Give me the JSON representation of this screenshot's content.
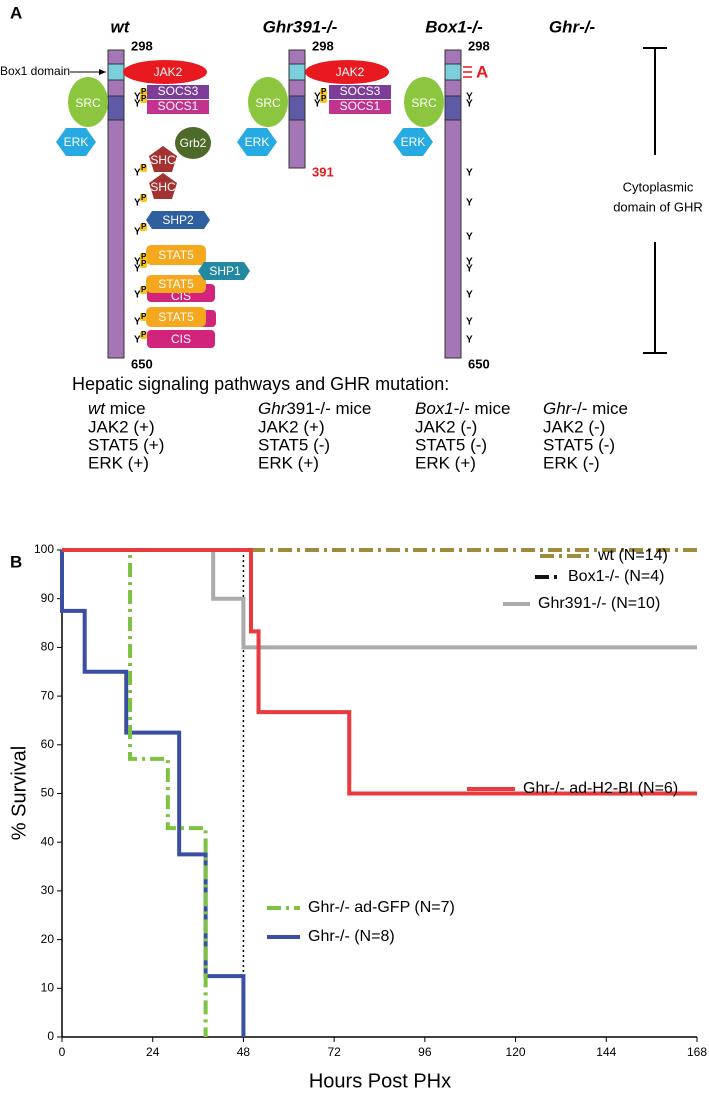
{
  "panel_a": {
    "label": "A",
    "box1_label": "Box1 domain",
    "columns": [
      {
        "name": "wt",
        "start": 298,
        "end": 650,
        "proteins": [
          "JAK2",
          "SOCS3",
          "SOCS1",
          "SRC",
          "ERK",
          "Grb2",
          "SHC",
          "SHC",
          "SHP2",
          "STAT5",
          "CIS",
          "STAT5",
          "STAT5",
          "CIS",
          "SHP1"
        ],
        "tyrosines": [
          "Y",
          "Y",
          "Y",
          "Y",
          "Y",
          "Y",
          "Y",
          "Y",
          "Y",
          "Y"
        ],
        "phospho": [
          "P",
          "P",
          "P",
          "P",
          "P",
          "P",
          "P",
          "P",
          "P",
          "P"
        ]
      },
      {
        "name": "Ghr391-/-",
        "start": 298,
        "end": 391,
        "proteins": [
          "JAK2",
          "SOCS3",
          "SOCS1",
          "SRC",
          "ERK"
        ],
        "tyrosines": [
          "Y",
          "Y"
        ],
        "phospho": [
          "P",
          "P"
        ]
      },
      {
        "name": "Box1-/-",
        "start": 298,
        "end": 650,
        "mutation": "A",
        "proteins": [
          "SRC",
          "ERK"
        ],
        "tyrosines": [
          "Y",
          "Y",
          "Y",
          "Y",
          "Y",
          "Y",
          "Y",
          "Y",
          "Y",
          "Y"
        ]
      },
      {
        "name": "Ghr-/-"
      }
    ],
    "scale_label": [
      "Cytoplasmic",
      "domain of GHR"
    ],
    "table": {
      "title": "Hepatic signaling pathways and GHR mutation:",
      "columns": [
        {
          "italic": "wt",
          "text": " mice",
          "rows": [
            "JAK2 (+)",
            "STAT5 (+)",
            "ERK (+)"
          ]
        },
        {
          "italic": "Ghr",
          "text": "391-/- mice",
          "rows": [
            "JAK2 (+)",
            "STAT5 (-)",
            "ERK (+)"
          ]
        },
        {
          "italic": "Box1",
          "text": "-/- mice",
          "rows": [
            "JAK2 (-)",
            "STAT5 (-)",
            "ERK (+)"
          ]
        },
        {
          "italic": "Ghr",
          "text": "-/- mice",
          "rows": [
            "JAK2 (-)",
            "STAT5 (-)",
            "ERK (-)"
          ]
        }
      ]
    }
  },
  "chart_data": {
    "type": "line",
    "panel_label": "B",
    "x_label": "Hours Post PHx",
    "y_label": "% Survival",
    "xlim": [
      0,
      168
    ],
    "xticks": [
      0,
      24,
      48,
      72,
      96,
      120,
      144,
      168
    ],
    "ylim": [
      0,
      100
    ],
    "yticks": [
      0,
      10,
      20,
      30,
      40,
      50,
      60,
      70,
      80,
      90,
      100
    ],
    "reference_x": 48,
    "series": [
      {
        "name": "Ghr-/- (N=8)",
        "color": "#3a4ea3",
        "dash": "solid",
        "x": [
          0,
          0,
          6,
          6,
          17,
          17,
          31,
          31,
          38,
          38,
          48,
          48
        ],
        "values": [
          100,
          87.5,
          87.5,
          75,
          75,
          62.5,
          62.5,
          37.5,
          37.5,
          12.5,
          12.5,
          0
        ]
      },
      {
        "name": "Ghr-/- ad-GFP (N=7)",
        "color": "#7dc242",
        "dash": "dash-dot",
        "x": [
          0,
          18,
          18,
          28,
          28,
          38,
          38
        ],
        "values": [
          100,
          100,
          57.1,
          57.1,
          42.9,
          42.9,
          0
        ]
      },
      {
        "name": "Ghr391-/- (N=10)",
        "color": "#aaaaaa",
        "dash": "solid",
        "x": [
          0,
          40,
          40,
          48,
          48,
          168
        ],
        "values": [
          100,
          100,
          90,
          90,
          80,
          80
        ]
      },
      {
        "name": "Box1-/- (N=4)",
        "color": "#111111",
        "dash": "dash-dot",
        "x": [
          0,
          168
        ],
        "values": [
          100,
          100
        ]
      },
      {
        "name": "wt (N=14)",
        "color": "#a08b3c",
        "dash": "dash-dot",
        "x": [
          0,
          168
        ],
        "values": [
          100,
          100
        ]
      },
      {
        "name": "Ghr-/- ad-H2-BI (N=6)",
        "color": "#e8393c",
        "dash": "solid",
        "x": [
          0,
          50,
          50,
          52,
          52,
          76,
          76,
          168
        ],
        "values": [
          100,
          100,
          83.3,
          83.3,
          66.7,
          66.7,
          50,
          50
        ]
      }
    ]
  }
}
